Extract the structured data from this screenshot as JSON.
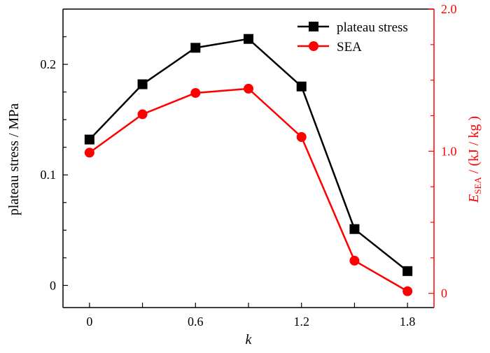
{
  "chart_data": {
    "type": "line",
    "xlabel": "k",
    "ylabel_left": "plateau stress / MPa",
    "ylabel_right": {
      "main": "E",
      "sub": "SEA",
      "rest": " / (kJ / kg )"
    },
    "x": [
      0,
      0.3,
      0.6,
      0.9,
      1.2,
      1.5,
      1.8
    ],
    "xlim": [
      -0.15,
      1.95
    ],
    "x_ticks": [
      0,
      0.3,
      0.6,
      0.9,
      1.2,
      1.5,
      1.8
    ],
    "x_tick_labels": [
      "0",
      "",
      "0.6",
      "",
      "1.2",
      "",
      "1.8"
    ],
    "ylim_left": [
      -0.02,
      0.25
    ],
    "y_left_ticks": [
      "0",
      "0.1",
      "0.2"
    ],
    "ylim_right": [
      -0.1,
      2.0
    ],
    "y_right_ticks": [
      "0",
      "1.0",
      "2.0"
    ],
    "grid": false,
    "legend_position": "top-right",
    "series": [
      {
        "name": "plateau stress",
        "axis": "left",
        "color": "#000000",
        "marker": "square",
        "values": [
          0.132,
          0.182,
          0.215,
          0.223,
          0.18,
          0.051,
          0.013
        ]
      },
      {
        "name": "SEA",
        "axis": "right",
        "color": "#ff0000",
        "marker": "circle",
        "values": [
          0.99,
          1.26,
          1.41,
          1.44,
          1.1,
          0.23,
          0.015
        ]
      }
    ]
  }
}
